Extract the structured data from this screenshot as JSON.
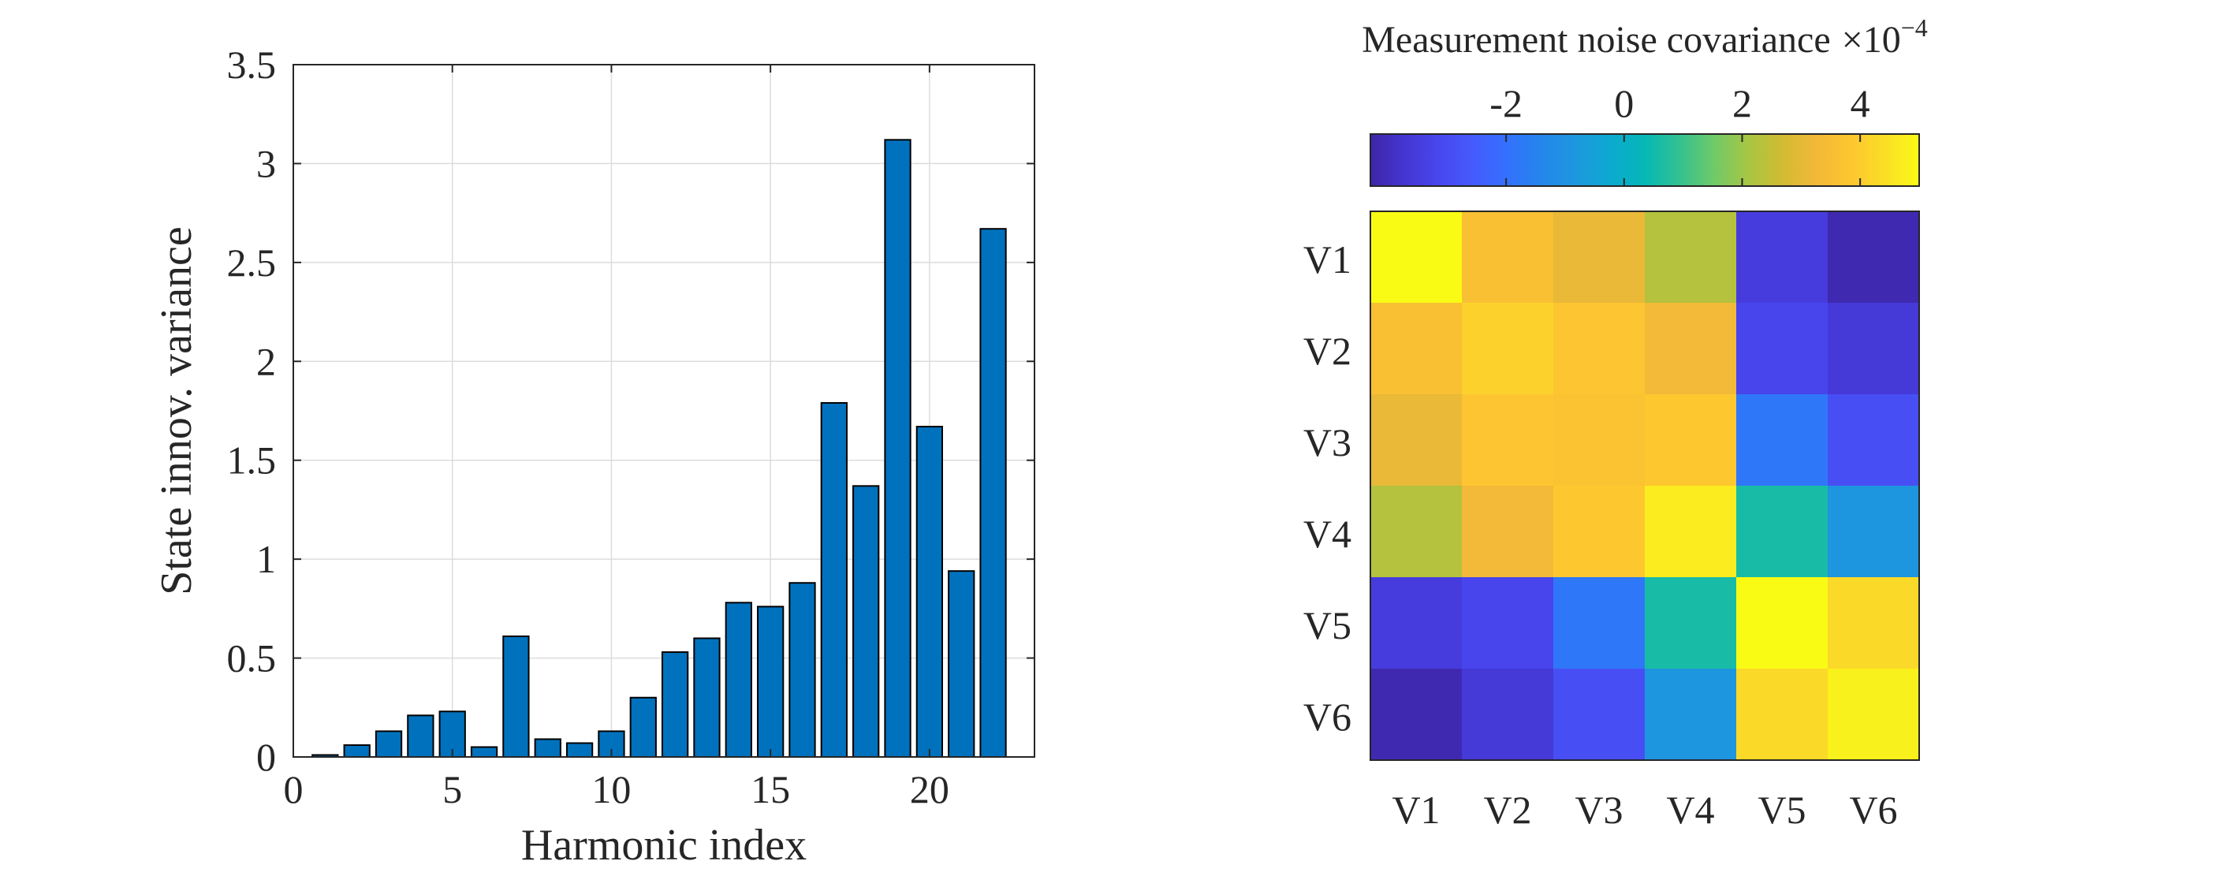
{
  "chart_data": [
    {
      "type": "bar",
      "xlabel": "Harmonic index",
      "ylabel": "State innov. variance",
      "xlim": [
        0,
        23.3
      ],
      "ylim": [
        0,
        3.5
      ],
      "xticks": [
        0,
        5,
        10,
        15,
        20
      ],
      "yticks": [
        0,
        0.5,
        1,
        1.5,
        2,
        2.5,
        3,
        3.5
      ],
      "xtick_labels": [
        "0",
        "5",
        "10",
        "15",
        "20"
      ],
      "ytick_labels": [
        "0",
        "0.5",
        "1",
        "1.5",
        "2",
        "2.5",
        "3",
        "3.5"
      ],
      "grid": true,
      "bar_color": "#0072BD",
      "x": [
        1,
        2,
        3,
        4,
        5,
        6,
        7,
        8,
        9,
        10,
        11,
        12,
        13,
        14,
        15,
        16,
        17,
        18,
        19,
        20,
        21,
        22
      ],
      "values": [
        0.01,
        0.06,
        0.13,
        0.21,
        0.23,
        0.05,
        0.61,
        0.09,
        0.07,
        0.13,
        0.3,
        0.53,
        0.6,
        0.78,
        0.76,
        0.88,
        1.79,
        1.37,
        3.12,
        1.67,
        0.94,
        2.67
      ]
    },
    {
      "type": "heatmap",
      "colorbar_title": "Measurement noise covariance",
      "colorbar_multiplier": "×10",
      "colorbar_exponent": "−4",
      "colorbar_ticks": [
        -2,
        0,
        2,
        4
      ],
      "colorbar_tick_labels": [
        "-2",
        "0",
        "2",
        "4"
      ],
      "clim": [
        -4.3,
        5.0
      ],
      "colormap": "parula",
      "row_labels": [
        "V1",
        "V2",
        "V3",
        "V4",
        "V5",
        "V6"
      ],
      "col_labels": [
        "V1",
        "V2",
        "V3",
        "V4",
        "V5",
        "V6"
      ],
      "values": [
        [
          5.0,
          3.6,
          3.1,
          2.3,
          -3.5,
          -4.2
        ],
        [
          3.6,
          4.1,
          3.8,
          3.3,
          -3.2,
          -3.6
        ],
        [
          3.1,
          3.8,
          3.7,
          3.9,
          -1.8,
          -2.9
        ],
        [
          2.3,
          3.3,
          3.9,
          4.7,
          0.6,
          -0.9
        ],
        [
          -3.5,
          -3.2,
          -1.8,
          0.6,
          5.0,
          4.3
        ],
        [
          -4.2,
          -3.6,
          -2.9,
          -0.9,
          4.3,
          4.8
        ]
      ]
    }
  ]
}
